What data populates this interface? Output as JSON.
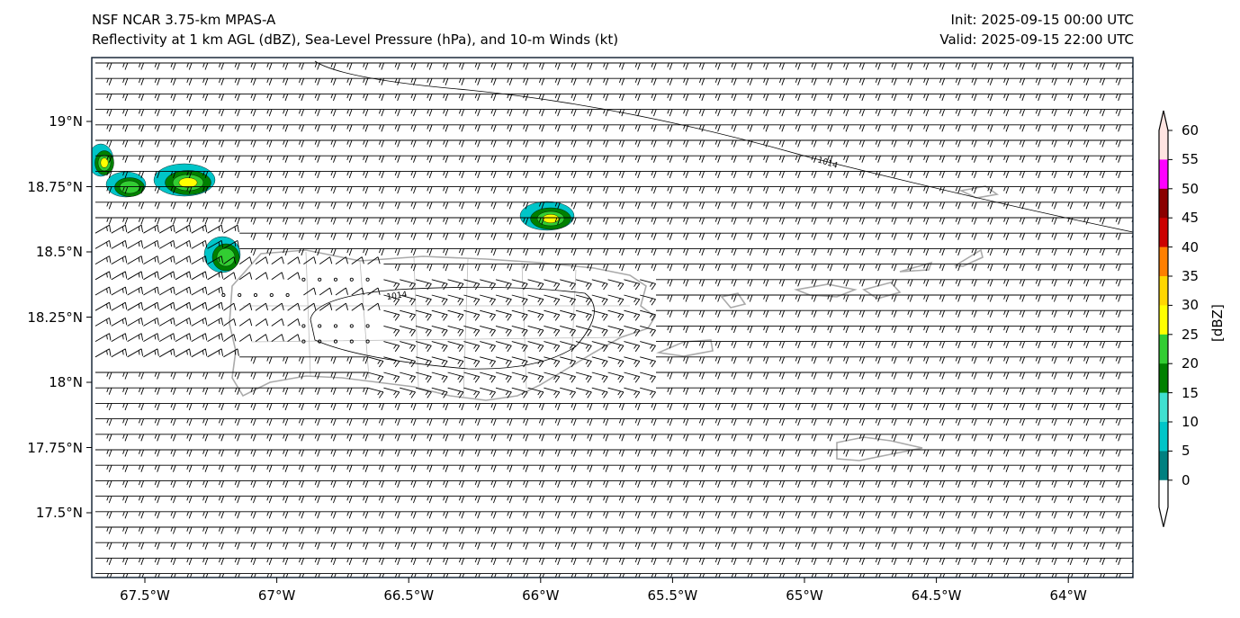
{
  "header": {
    "title_left_1": "NSF NCAR 3.75-km MPAS-A",
    "title_left_2": "Reflectivity at 1 km AGL (dBZ), Sea-Level Pressure (hPa), and 10-m Winds (kt)",
    "title_right_1": "Init: 2025-09-15 00:00 UTC",
    "title_right_2": "Valid: 2025-09-15 22:00 UTC"
  },
  "axes": {
    "lon_ticks": [
      "67.5°W",
      "67°W",
      "66.5°W",
      "66°W",
      "65.5°W",
      "65°W",
      "64.5°W",
      "64°W"
    ],
    "lat_ticks": [
      "19°N",
      "18.75°N",
      "18.5°N",
      "18.25°N",
      "18°N",
      "17.75°N",
      "17.5°N"
    ]
  },
  "contours": {
    "slp_labels": [
      "1014",
      "1014"
    ]
  },
  "colorbar": {
    "label": "[dBZ]",
    "ticks": [
      "0",
      "5",
      "10",
      "15",
      "20",
      "25",
      "30",
      "35",
      "40",
      "45",
      "50",
      "55",
      "60"
    ],
    "colors": [
      "#008080",
      "#00c5c8",
      "#40e0d0",
      "#008000",
      "#32cd32",
      "#ffff00",
      "#ffd700",
      "#ff7f00",
      "#cc0000",
      "#8b0000",
      "#ff00ff",
      "#ffe4e1"
    ]
  }
}
